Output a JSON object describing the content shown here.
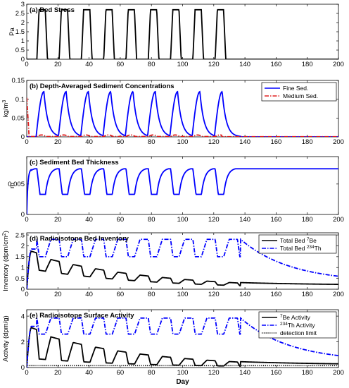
{
  "x_axis": {
    "label": "Day",
    "range": [
      0,
      200
    ],
    "ticks": [
      0,
      20,
      40,
      60,
      80,
      100,
      120,
      140,
      160,
      180,
      200
    ]
  },
  "chart_data": [
    {
      "type": "line",
      "title": "(a) Bed Stress",
      "ylabel": "Pa",
      "ylabel_sup": "",
      "ylim": [
        0,
        3
      ],
      "yticks": [
        "0",
        "0.5",
        "1",
        "1.5",
        "2",
        "2.5",
        "3"
      ],
      "yvalues": [
        0,
        0.5,
        1,
        1.5,
        2,
        2.5,
        3
      ],
      "series": [
        {
          "name": "",
          "color": "#000000",
          "style": "solid",
          "model": {
            "kind": "pulses",
            "peak": 2.7,
            "base": 0.0,
            "cycles": 9,
            "period": 14.3,
            "start": 6.5,
            "rise": 1.4,
            "width": 4.0,
            "fall": 1.4
          }
        }
      ]
    },
    {
      "type": "line",
      "title": "(b) Depth-Averaged Sediment Concentrations",
      "ylabel": "kg/m",
      "ylabel_sup": "3",
      "ylim": [
        0,
        0.15
      ],
      "yticks": [
        "0",
        "0.05",
        "0.1",
        "0.15"
      ],
      "yvalues": [
        0,
        0.05,
        0.1,
        0.15
      ],
      "legend": {
        "placement": "top-right"
      },
      "series": [
        {
          "name": "Fine Sed.",
          "name_sup": "",
          "name_tail": "",
          "color": "#0000ff",
          "style": "solid",
          "model": {
            "kind": "conc",
            "peak": 0.12,
            "cycles": 9,
            "period": 14.3,
            "start": 6.5,
            "decay": 2.6
          }
        },
        {
          "name": "Medium Sed.",
          "name_sup": "",
          "name_tail": "",
          "color": "#e02020",
          "style": "dashdot",
          "model": {
            "kind": "medium",
            "init": 0.1,
            "bump": 0.004
          }
        }
      ]
    },
    {
      "type": "line",
      "title": "(c) Sediment Bed Thickness",
      "ylabel": "m",
      "ylabel_sup": "",
      "ylim": [
        0,
        0.0095
      ],
      "yticks": [
        "0",
        "0.005"
      ],
      "yvalues": [
        0,
        0.005
      ],
      "series": [
        {
          "name": "",
          "color": "#0000ff",
          "style": "solid",
          "model": {
            "kind": "thickness",
            "high": 0.0075,
            "low": 0.0033,
            "cycles": 9,
            "period": 14.3,
            "start": 6.5
          }
        }
      ]
    },
    {
      "type": "line",
      "title": "(d) Radioisotope Bed Inventory",
      "ylabel": "Inventory (dpm/cm",
      "ylabel_sup": "2",
      "ylabel_tail": ")",
      "ylim": [
        0,
        2.6
      ],
      "yticks": [
        "0",
        "0.5",
        "1",
        "1.5",
        "2",
        "2.5"
      ],
      "yvalues": [
        0,
        0.5,
        1,
        1.5,
        2,
        2.5
      ],
      "legend": {
        "placement": "top-right"
      },
      "series": [
        {
          "name": "Total Bed ",
          "name_sup": "7",
          "name_tail": "Be",
          "color": "#000000",
          "style": "solid",
          "model": {
            "kind": "be7",
            "early": 1.75,
            "decay_days": 77,
            "dip": 0.42,
            "cycles": 9,
            "period": 14.3,
            "start": 6.5,
            "end": 0.18
          }
        },
        {
          "name": "Total Bed ",
          "name_sup": "234",
          "name_tail": "Th",
          "color": "#0000ff",
          "style": "dashdot",
          "model": {
            "kind": "th234",
            "early": 1.85,
            "high": 2.3,
            "low": 1.5,
            "cycles": 9,
            "period": 14.3,
            "start": 6.5,
            "end": 0.32
          }
        }
      ]
    },
    {
      "type": "line",
      "title": "(e) Radioisotope Surface Activity",
      "ylabel": "Activity (dpm/g)",
      "ylabel_sup": "",
      "ylim": [
        0,
        4.5
      ],
      "yticks": [
        "0",
        "2",
        "4"
      ],
      "yvalues": [
        0,
        2,
        4
      ],
      "legend": {
        "placement": "top-right"
      },
      "series": [
        {
          "name": "",
          "name_sup": "7",
          "name_tail": "Be Activity",
          "color": "#000000",
          "style": "solid",
          "model": {
            "kind": "be7",
            "early": 3.1,
            "decay_days": 70,
            "dip": 0.75,
            "cycles": 9,
            "period": 14.3,
            "start": 6.5,
            "end": 0.2
          }
        },
        {
          "name": "",
          "name_sup": "234",
          "name_tail": "Th Activity",
          "color": "#0000ff",
          "style": "dashdot",
          "model": {
            "kind": "th234",
            "early": 3.2,
            "high": 3.85,
            "low": 2.6,
            "cycles": 9,
            "period": 14.3,
            "start": 6.5,
            "end": 0.45
          }
        },
        {
          "name": "detection limit",
          "name_sup": "",
          "name_tail": "",
          "color": "#000000",
          "style": "dotted",
          "model": {
            "kind": "flat",
            "value": 0.15
          }
        }
      ]
    }
  ]
}
